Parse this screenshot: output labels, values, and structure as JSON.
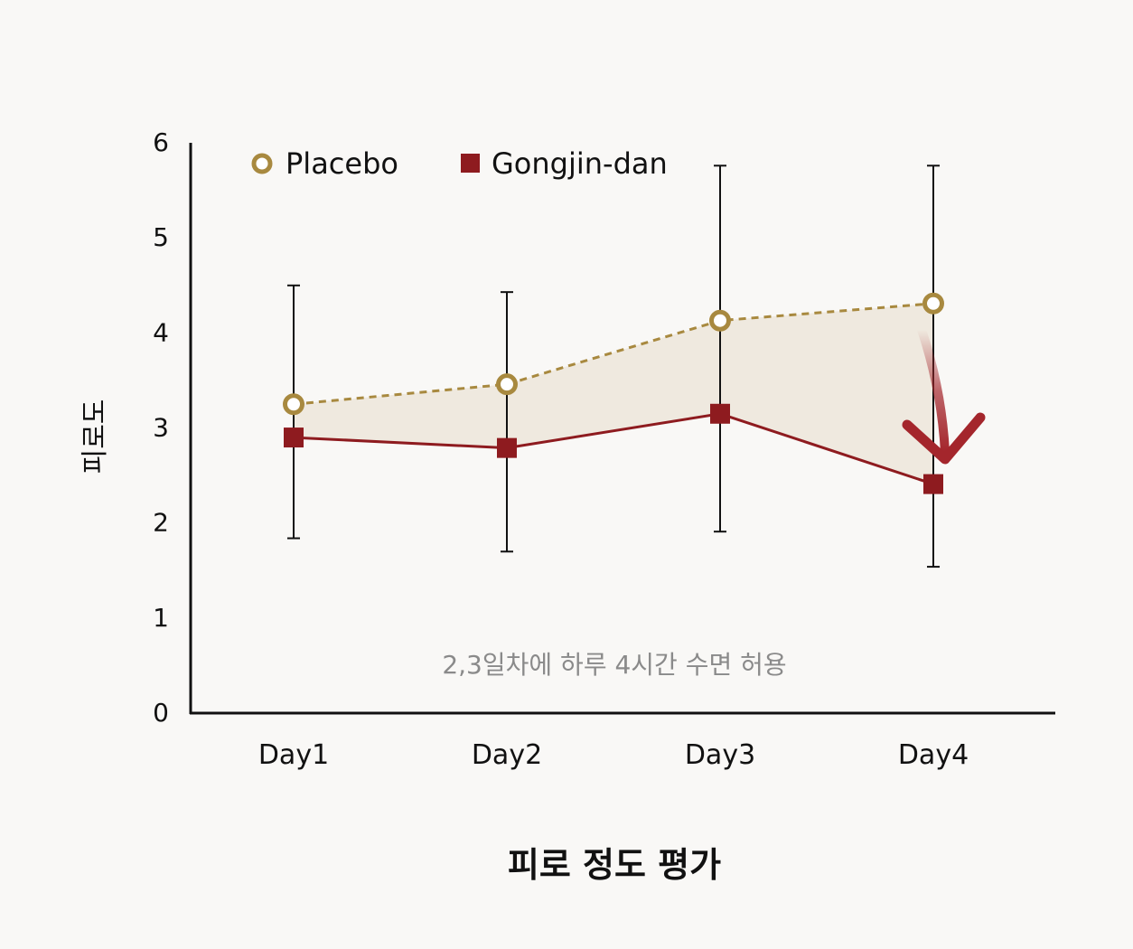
{
  "chart_data": {
    "type": "line",
    "title": "피로 정도 평가",
    "xlabel": "",
    "ylabel": "피로도",
    "categories": [
      "Day1",
      "Day2",
      "Day3",
      "Day4"
    ],
    "ylim": [
      0,
      6
    ],
    "yticks": [
      "0",
      "1",
      "2",
      "3",
      "4",
      "5",
      "6"
    ],
    "grid": false,
    "legend_position": "top-left",
    "annotation": "2,3일차에 하루 4시간 수면 허용",
    "series": [
      {
        "name": "Placebo",
        "marker": "open-circle",
        "line": "dashed",
        "color": "#a8893f",
        "values": [
          3.24,
          3.45,
          4.12,
          4.3
        ],
        "error_upper": [
          4.49,
          4.42,
          5.75,
          5.75
        ]
      },
      {
        "name": "Gongjin-dan",
        "marker": "square",
        "line": "solid",
        "color": "#8e1b1f",
        "values": [
          2.89,
          2.78,
          3.14,
          2.4
        ],
        "error_lower": [
          1.83,
          1.69,
          1.9,
          1.53
        ]
      }
    ],
    "fill_color": "#efe9df",
    "arrow_color": "#a4262c"
  }
}
